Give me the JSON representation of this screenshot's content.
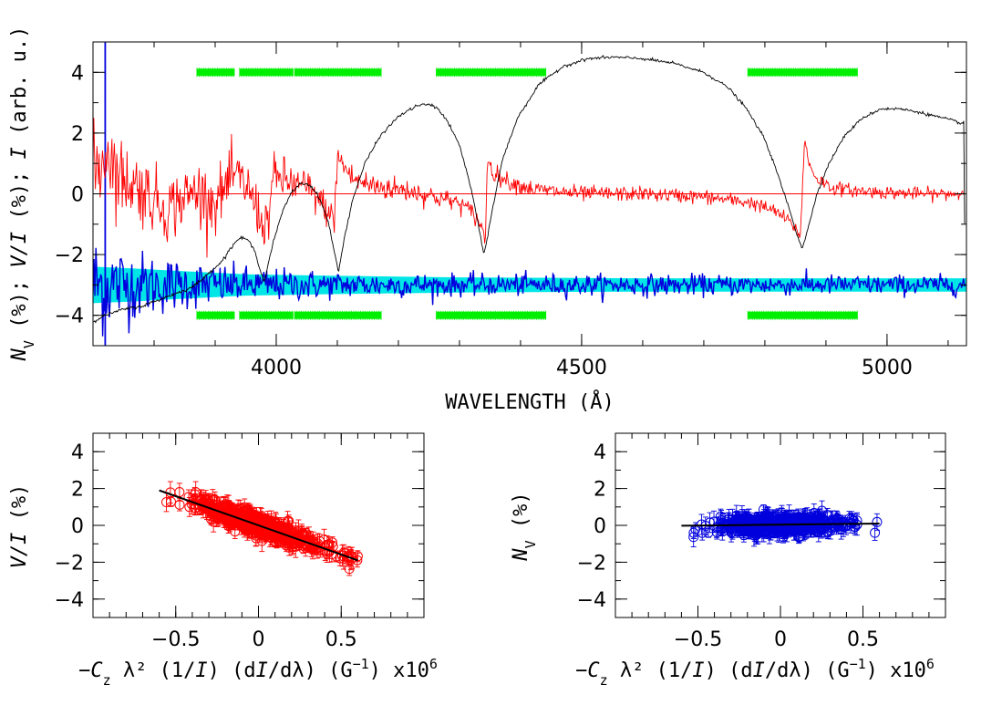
{
  "colors": {
    "stokes_v": "#ff0000",
    "null_n": "#0000dd",
    "null_band": "#00e6e6",
    "intensity": "#000000",
    "mask": "#00ee00",
    "fit_line": "#000000",
    "frame": "#000000"
  },
  "chart_data": [
    {
      "id": "spectrum",
      "type": "line",
      "xlabel": "WAVELENGTH (Å)",
      "ylabel_parts": [
        "N",
        "V",
        " (%); ",
        "V/I",
        " (%); ",
        "I",
        " (arb. u.)"
      ],
      "xlim": [
        3700,
        5130
      ],
      "ylim": [
        -5,
        5
      ],
      "xticks": [
        4000,
        4500,
        5000
      ],
      "yticks": [
        -4,
        -2,
        0,
        2,
        4
      ],
      "xtick_labels": [
        "4000",
        "4500",
        "5000"
      ],
      "ytick_labels": [
        "−4",
        "−2",
        "0",
        "2",
        "4"
      ],
      "intensity_profile": {
        "x": [
          3700,
          3720,
          3750,
          3780,
          3820,
          3860,
          3880,
          3895,
          3910,
          3925,
          3937,
          3947,
          3955,
          3965,
          3980,
          3995,
          4010,
          4025,
          4040,
          4055,
          4070,
          4085,
          4097,
          4102,
          4110,
          4125,
          4145,
          4170,
          4200,
          4230,
          4250,
          4265,
          4280,
          4300,
          4315,
          4325,
          4335,
          4340,
          4345,
          4355,
          4370,
          4395,
          4430,
          4470,
          4510,
          4550,
          4600,
          4650,
          4700,
          4740,
          4770,
          4800,
          4820,
          4840,
          4852,
          4861,
          4870,
          4885,
          4905,
          4930,
          4960,
          4990,
          5020,
          5050,
          5080,
          5110,
          5125,
          5126,
          5127
        ],
        "y": [
          -4.2,
          -4.0,
          -3.8,
          -3.7,
          -3.4,
          -3.1,
          -2.8,
          -2.5,
          -2.25,
          -1.8,
          -1.5,
          -1.45,
          -1.55,
          -1.9,
          -2.9,
          -1.6,
          -0.6,
          0.05,
          0.35,
          0.3,
          -0.1,
          -0.9,
          -2.1,
          -2.6,
          -1.6,
          -0.2,
          1.0,
          1.9,
          2.55,
          2.9,
          2.95,
          2.8,
          2.4,
          1.6,
          0.5,
          -0.4,
          -1.5,
          -2.0,
          -1.5,
          -0.4,
          1.1,
          2.5,
          3.6,
          4.2,
          4.45,
          4.5,
          4.45,
          4.3,
          4.0,
          3.5,
          2.8,
          1.8,
          0.7,
          -0.5,
          -1.3,
          -1.8,
          -1.2,
          0.0,
          1.0,
          1.9,
          2.5,
          2.8,
          2.8,
          2.7,
          2.55,
          2.4,
          2.3,
          2.5,
          -1.0
        ]
      },
      "stokes_v_profile": {
        "x": [
          3700,
          3715,
          3725,
          3740,
          3770,
          3820,
          3870,
          3900,
          3930,
          3950,
          3965,
          3975,
          3985,
          3995,
          4010,
          4030,
          4050,
          4070,
          4085,
          4095,
          4100,
          4108,
          4125,
          4150,
          4180,
          4220,
          4260,
          4300,
          4320,
          4335,
          4342,
          4346,
          4355,
          4380,
          4420,
          4500,
          4600,
          4700,
          4780,
          4820,
          4845,
          4858,
          4865,
          4872,
          4885,
          4910,
          4950,
          5000,
          5050,
          5100,
          5125
        ],
        "y": [
          0.8,
          1.0,
          1.5,
          0.6,
          0.3,
          -0.5,
          0.1,
          -0.3,
          0.6,
          0.3,
          -0.3,
          -0.9,
          -1.0,
          0.5,
          0.5,
          0.3,
          0.2,
          -0.2,
          -0.6,
          -0.9,
          1.2,
          1.0,
          0.5,
          0.3,
          0.2,
          0.1,
          -0.1,
          -0.3,
          -0.6,
          -1.0,
          -1.6,
          1.2,
          0.7,
          0.4,
          0.15,
          0.0,
          0.0,
          -0.1,
          -0.3,
          -0.6,
          -1.0,
          -1.4,
          1.8,
          1.0,
          0.5,
          0.2,
          0.1,
          0.05,
          0.0,
          0.0,
          0.0
        ]
      },
      "null_profile": {
        "mean": -3.0,
        "x_start": 3700,
        "x_end": 5130
      },
      "null_band": {
        "x": [
          3700,
          3760,
          3850,
          3950,
          4100,
          4300,
          4600,
          4900,
          5130
        ],
        "half_width": [
          0.6,
          0.55,
          0.45,
          0.35,
          0.3,
          0.25,
          0.22,
          0.22,
          0.22
        ]
      },
      "blue_vertical_line_x": 3720,
      "mask_segments_top_y": 4.0,
      "mask_segments_bottom_y": -4.0,
      "mask_segments": [
        [
          3870,
          3932
        ],
        [
          3940,
          4028
        ],
        [
          4030,
          4172
        ],
        [
          4262,
          4442
        ],
        [
          4772,
          4952
        ]
      ]
    },
    {
      "id": "v_vs_derivative",
      "type": "scatter",
      "xlabel_parts": [
        "−",
        "C",
        "z",
        " λ² (1/",
        "I",
        ") (d",
        "I",
        "/dλ) (G",
        "−1",
        ") x10",
        "6"
      ],
      "ylabel_parts": [
        "V/I",
        " (%)"
      ],
      "xlim": [
        -1.0,
        1.0
      ],
      "ylim": [
        -5,
        5
      ],
      "xticks": [
        -0.5,
        0,
        0.5
      ],
      "yticks": [
        -4,
        -2,
        0,
        2,
        4
      ],
      "xtick_labels": [
        "−0.5",
        "0",
        "0.5"
      ],
      "ytick_labels": [
        "−4",
        "−2",
        "0",
        "2",
        "4"
      ],
      "fit": {
        "x": [
          -0.6,
          0.6
        ],
        "y": [
          1.9,
          -1.9
        ]
      },
      "slope": -3.1,
      "x_range": [
        -0.6,
        0.6
      ],
      "scatter_sd": 0.28,
      "marker": "open-circle-with-errorbars"
    },
    {
      "id": "n_vs_derivative",
      "type": "scatter",
      "xlabel_parts": [
        "−",
        "C",
        "z",
        " λ² (1/",
        "I",
        ") (d",
        "I",
        "/dλ) (G",
        "−1",
        ") x10",
        "6"
      ],
      "ylabel_parts": [
        "N",
        "V",
        " (%)"
      ],
      "xlim": [
        -1.0,
        1.0
      ],
      "ylim": [
        -5,
        5
      ],
      "xticks": [
        -0.5,
        0,
        0.5
      ],
      "yticks": [
        -4,
        -2,
        0,
        2,
        4
      ],
      "xtick_labels": [
        "−0.5",
        "0",
        "0.5"
      ],
      "ytick_labels": [
        "−4",
        "−2",
        "0",
        "2",
        "4"
      ],
      "fit": {
        "x": [
          -0.6,
          0.6
        ],
        "y": [
          -0.02,
          0.1
        ]
      },
      "slope": 0.1,
      "x_range": [
        -0.6,
        0.6
      ],
      "scatter_sd": 0.22,
      "marker": "open-circle-with-errorbars"
    }
  ]
}
